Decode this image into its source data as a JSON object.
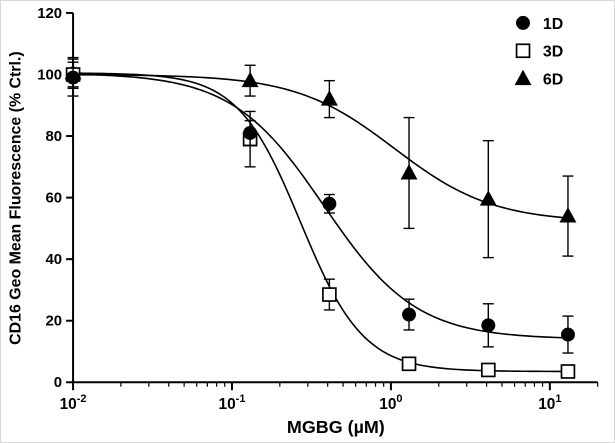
{
  "chart_data": {
    "type": "scatter",
    "title": "",
    "xlabel": "MGBG (µM)",
    "ylabel": "CD16 Geo Mean Fluorescence (% Ctrl.)",
    "x_scale": "log",
    "y_scale": "linear",
    "xlim": [
      0.01,
      20
    ],
    "ylim": [
      0,
      120
    ],
    "grid": false,
    "axis_color": "#000000",
    "y_ticks": [
      0,
      20,
      40,
      60,
      80,
      100,
      120
    ],
    "x_major_ticks": [
      {
        "value": 0.01,
        "base": "10",
        "exp": "-2"
      },
      {
        "value": 0.1,
        "base": "10",
        "exp": "-1"
      },
      {
        "value": 1,
        "base": "10",
        "exp": "0"
      },
      {
        "value": 10,
        "base": "10",
        "exp": "1"
      }
    ],
    "legend_position": "top-right",
    "series": [
      {
        "name": "1D",
        "marker": "filled-circle",
        "color": "#000000",
        "x": [
          0.01,
          0.13,
          0.41,
          1.3,
          4.1,
          13
        ],
        "y": [
          99,
          81,
          58,
          22,
          18.5,
          15.5
        ],
        "y_error": [
          6,
          4,
          3,
          5,
          7,
          6
        ],
        "fit": {
          "model": "4PL",
          "top": 100.5,
          "bottom": 14,
          "ic50": 0.38,
          "hill": 1.5
        }
      },
      {
        "name": "3D",
        "marker": "open-square",
        "color": "#000000",
        "x": [
          0.01,
          0.13,
          0.41,
          1.3,
          4.1,
          13
        ],
        "y": [
          100,
          79,
          28.5,
          6,
          4,
          3.5
        ],
        "y_error": [
          4,
          9,
          5,
          2,
          1.5,
          1.5
        ],
        "fit": {
          "model": "4PL",
          "top": 100.5,
          "bottom": 3.5,
          "ic50": 0.27,
          "hill": 2.2
        }
      },
      {
        "name": "6D",
        "marker": "filled-triangle",
        "color": "#000000",
        "x": [
          0.01,
          0.13,
          0.41,
          1.3,
          4.1,
          13
        ],
        "y": [
          100.5,
          98,
          92,
          68,
          59.5,
          54
        ],
        "y_error": [
          5,
          5,
          6,
          18,
          19,
          13
        ],
        "fit": {
          "model": "4PL",
          "top": 100,
          "bottom": 52,
          "ic50": 1.05,
          "hill": 1.4
        }
      }
    ]
  }
}
